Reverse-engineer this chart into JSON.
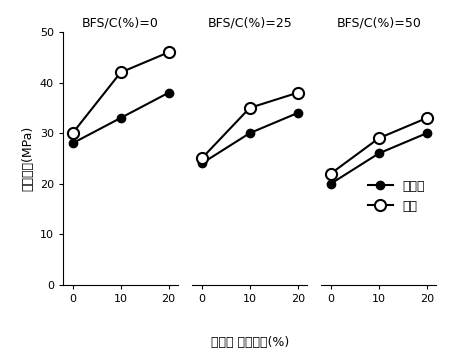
{
  "x": [
    0,
    10,
    20
  ],
  "panels": [
    {
      "title": "BFS/C(%)=0",
      "standard_sand": [
        28,
        33,
        38
      ],
      "silica_sand": [
        30,
        42,
        46
      ]
    },
    {
      "title": "BFS/C(%)=25",
      "standard_sand": [
        24,
        30,
        34
      ],
      "silica_sand": [
        25,
        35,
        38
      ]
    },
    {
      "title": "BFS/C(%)=50",
      "standard_sand": [
        20,
        26,
        30
      ],
      "silica_sand": [
        22,
        29,
        33
      ]
    }
  ],
  "ylabel": "압축강도(MPa)",
  "xlabel": "폴리머 결합재비(%)",
  "ylim": [
    0,
    50
  ],
  "yticks": [
    0,
    10,
    20,
    30,
    40,
    50
  ],
  "xticks": [
    0,
    10,
    20
  ],
  "legend_labels": [
    "표준사",
    "규사"
  ],
  "markersize": 6,
  "linewidth": 1.5,
  "title_fontsize": 9,
  "label_fontsize": 9,
  "tick_fontsize": 8,
  "legend_fontsize": 9
}
